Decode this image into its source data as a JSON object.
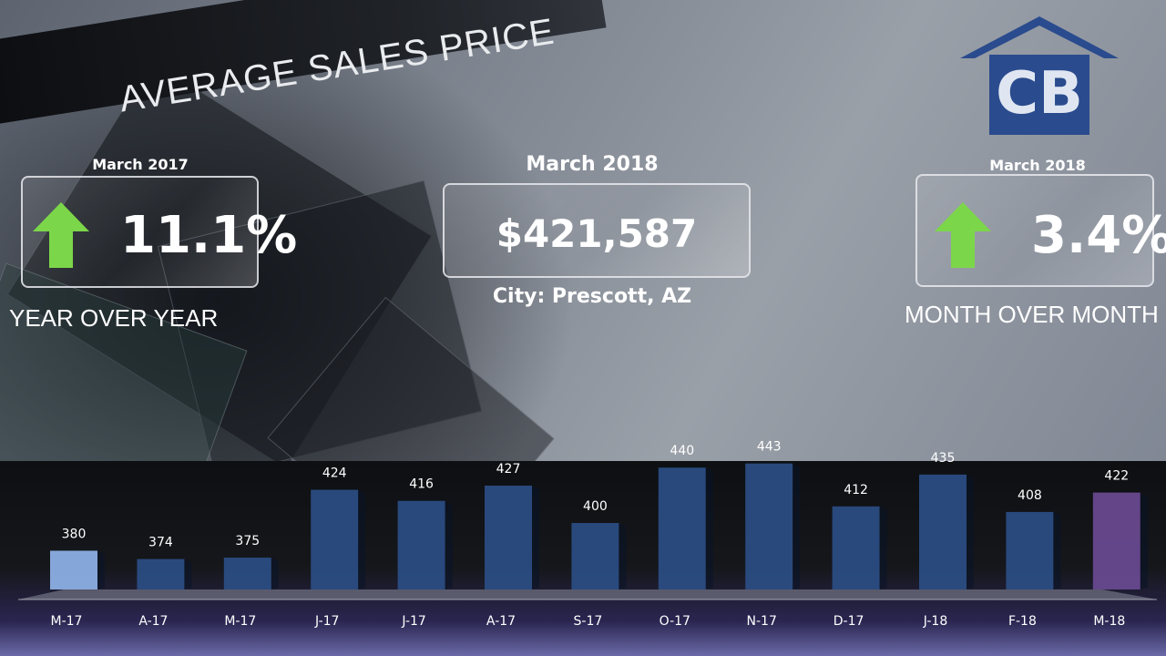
{
  "header": {
    "title": "AVERAGE SALES PRICE"
  },
  "logo": {
    "icon": "house-cb-logo-icon",
    "text": "CB",
    "color": "#2a4b8d"
  },
  "kpi_left": {
    "period": "March 2017",
    "value": "11.1%",
    "direction": "up",
    "caption": "YEAR OVER YEAR"
  },
  "kpi_center": {
    "period": "March 2018",
    "value": "$421,587",
    "city": "City: Prescott, AZ"
  },
  "kpi_right": {
    "period": "March 2018",
    "value": "3.4%",
    "direction": "up",
    "caption": "MONTH OVER MONTH"
  },
  "colors": {
    "arrow": "#7cd64a",
    "bar_primary": "#2b4e86",
    "bar_first": "#8fb3e8",
    "bar_last": "#6a4a92"
  },
  "chart_data": {
    "type": "bar",
    "categories": [
      "M-17",
      "A-17",
      "M-17",
      "J-17",
      "J-17",
      "A-17",
      "S-17",
      "O-17",
      "N-17",
      "D-17",
      "J-18",
      "F-18",
      "M-18"
    ],
    "values": [
      380,
      374,
      375,
      424,
      416,
      427,
      400,
      440,
      443,
      412,
      435,
      408,
      422
    ],
    "data_labels": [
      "380",
      "374",
      "375",
      "424",
      "416",
      "427",
      "400",
      "440",
      "443",
      "412",
      "435",
      "408",
      "422"
    ],
    "title": "",
    "xlabel": "",
    "ylabel": "",
    "ylim": [
      350,
      450
    ],
    "grid": false,
    "legend": "none"
  }
}
